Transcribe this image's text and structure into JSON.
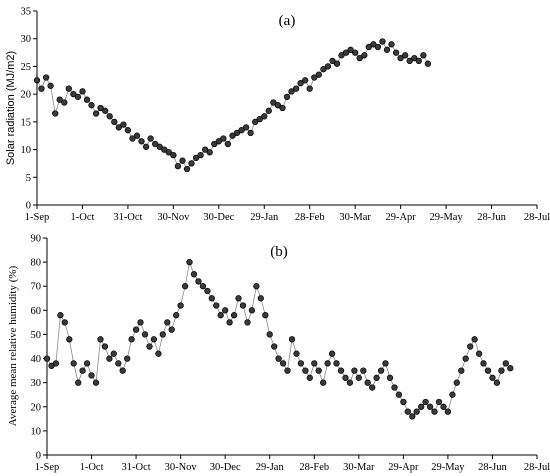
{
  "chart_data": [
    {
      "type": "line",
      "panel_label": "(a)",
      "title": "",
      "xlabel": "",
      "ylabel": "Solar radiation (MJ/m2)",
      "ylim": [
        0,
        35
      ],
      "yticks": [
        0,
        5,
        10,
        15,
        20,
        25,
        30,
        35
      ],
      "x_ticklabels": [
        "1-Sep",
        "1-Oct",
        "31-Oct",
        "30-Nov",
        "30-Dec",
        "29-Jan",
        "28-Feb",
        "30-Mar",
        "29-Apr",
        "29-May",
        "28-Jun",
        "28-Jul"
      ],
      "x_range_dates": [
        "1-Sep",
        "28-Jul"
      ],
      "grid": false,
      "marker": "circle",
      "series": [
        {
          "x_start": "1-Sep",
          "x_step_days": 3,
          "values": [
            22.5,
            21.0,
            23.0,
            21.5,
            16.5,
            19.0,
            18.5,
            21.0,
            20.0,
            19.5,
            20.5,
            19.0,
            18.0,
            16.5,
            17.5,
            17.0,
            16.0,
            15.0,
            14.0,
            14.5,
            13.5,
            12.0,
            12.5,
            11.5,
            10.5,
            12.0,
            11.0,
            10.5,
            10.0,
            9.5,
            9.0,
            7.0,
            8.0,
            6.5,
            7.5,
            8.5,
            9.0,
            10.0,
            9.5,
            11.0,
            11.5,
            12.0,
            11.0,
            12.5,
            13.0,
            13.5,
            14.0,
            13.0,
            15.0,
            15.5,
            16.0,
            17.0,
            18.5,
            18.0,
            17.5,
            19.5,
            20.5,
            21.0,
            22.0,
            22.5,
            21.0,
            23.0,
            23.5,
            24.5,
            25.0,
            26.0,
            25.5,
            27.0,
            27.5,
            28.0,
            27.5,
            26.5,
            27.0,
            28.5,
            29.0,
            28.5,
            29.5,
            28.0,
            29.0,
            27.5,
            26.5,
            27.0,
            26.0,
            26.5,
            26.0,
            27.0,
            25.5
          ]
        }
      ]
    },
    {
      "type": "line",
      "panel_label": "(b)",
      "title": "",
      "xlabel": "",
      "ylabel": "Average mean relative humidity (%)",
      "ylim": [
        0,
        90
      ],
      "yticks": [
        0,
        10,
        20,
        30,
        40,
        50,
        60,
        70,
        80,
        90
      ],
      "x_ticklabels": [
        "1-Sep",
        "1-Oct",
        "31-Oct",
        "30-Nov",
        "30-Dec",
        "29-Jan",
        "28-Feb",
        "30-Mar",
        "29-Apr",
        "29-May",
        "28-Jun",
        "28-Jul"
      ],
      "x_range_dates": [
        "1-Sep",
        "28-Jul"
      ],
      "grid": false,
      "marker": "circle",
      "series": [
        {
          "x_start": "1-Sep",
          "x_step_days": 3,
          "values": [
            40,
            37,
            38,
            58,
            55,
            48,
            38,
            30,
            35,
            38,
            33,
            30,
            48,
            45,
            40,
            42,
            38,
            35,
            40,
            48,
            52,
            55,
            50,
            45,
            48,
            42,
            50,
            55,
            52,
            58,
            62,
            70,
            80,
            75,
            72,
            70,
            68,
            65,
            62,
            58,
            60,
            55,
            58,
            65,
            62,
            55,
            60,
            70,
            65,
            58,
            50,
            45,
            40,
            38,
            35,
            48,
            42,
            38,
            35,
            32,
            38,
            35,
            30,
            38,
            42,
            38,
            35,
            32,
            30,
            35,
            32,
            35,
            30,
            28,
            32,
            35,
            38,
            32,
            28,
            25,
            22,
            18,
            16,
            18,
            20,
            22,
            20,
            18,
            22,
            20,
            18,
            25,
            30,
            35,
            40,
            45,
            48,
            42,
            38,
            35,
            32,
            30,
            35,
            38,
            36
          ]
        }
      ]
    }
  ]
}
